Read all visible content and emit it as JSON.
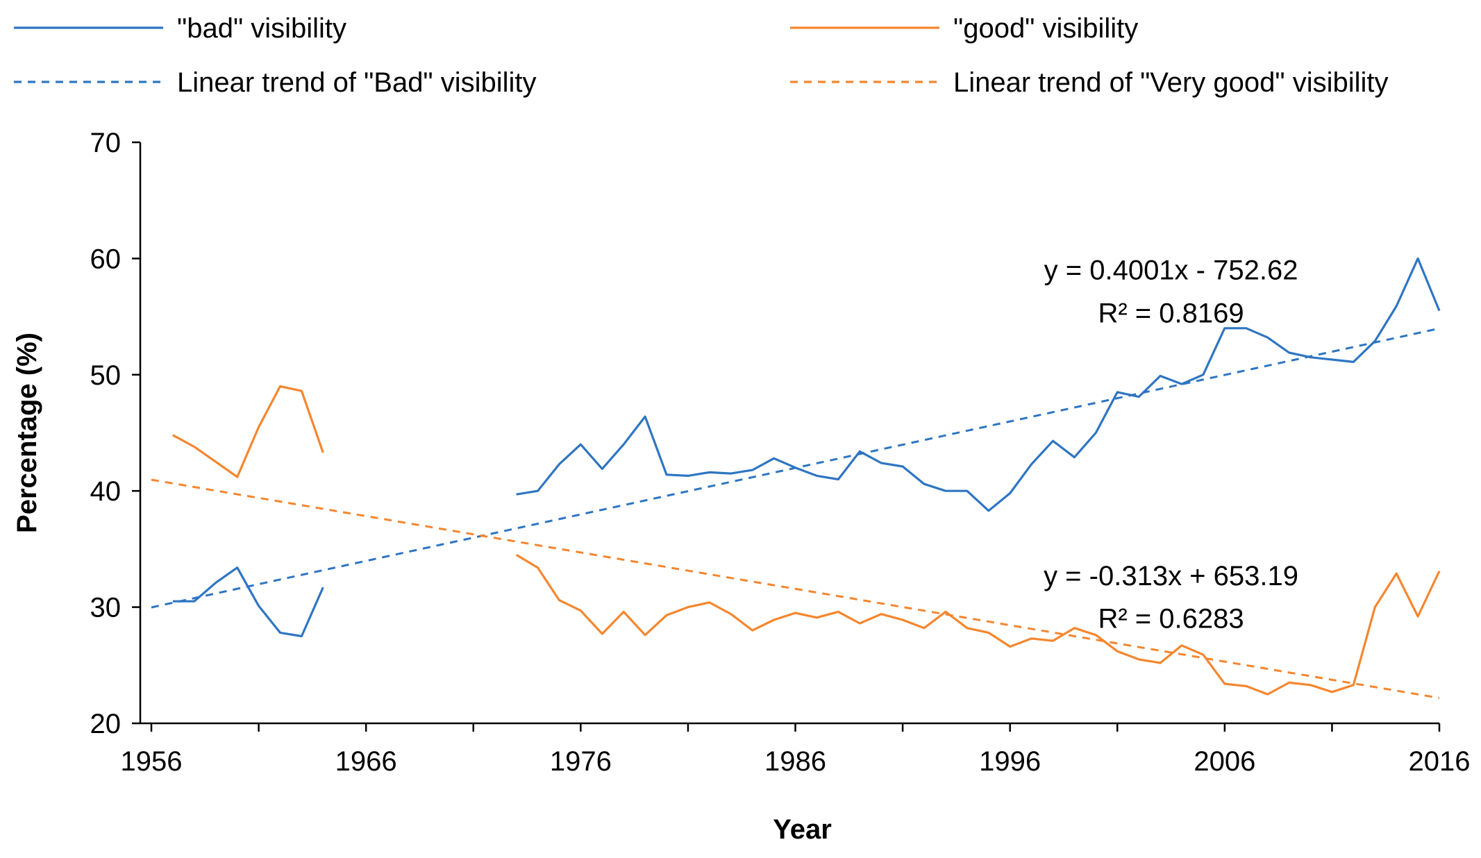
{
  "chart_data": {
    "type": "line",
    "title": "",
    "xlabel": "Year",
    "ylabel": "Percentage (%)",
    "xlim": [
      1956,
      2016
    ],
    "ylim": [
      20,
      70
    ],
    "x_ticks": [
      "1956",
      "1966",
      "1976",
      "1986",
      "1996",
      "2006",
      "2016"
    ],
    "y_ticks": [
      "20",
      "30",
      "40",
      "50",
      "60",
      "70"
    ],
    "grid": false,
    "legend_position": "top",
    "colors": {
      "bad": "#2E75C2",
      "good": "#F5862E"
    },
    "series": [
      {
        "name": "\"bad\" visibility",
        "style": "solid",
        "color_key": "bad",
        "segments": [
          {
            "x": [
              1957,
              1958,
              1959,
              1960,
              1961,
              1962,
              1963,
              1964
            ],
            "y": [
              30.5,
              30.5,
              32.1,
              33.4,
              30.1,
              27.8,
              27.5,
              31.7
            ]
          },
          {
            "x": [
              1973,
              1974,
              1975,
              1976,
              1977,
              1978,
              1979,
              1980,
              1981,
              1982,
              1983,
              1984,
              1985,
              1986,
              1987,
              1988,
              1989,
              1990,
              1991,
              1992,
              1993,
              1994,
              1995,
              1996,
              1997,
              1998,
              1999,
              2000,
              2001,
              2002,
              2003,
              2004,
              2005,
              2006,
              2007,
              2008,
              2009,
              2010,
              2011,
              2012,
              2013,
              2014,
              2015,
              2016
            ],
            "y": [
              39.7,
              40.0,
              42.3,
              44.0,
              41.9,
              44.0,
              46.4,
              41.4,
              41.3,
              41.6,
              41.5,
              41.8,
              42.8,
              42.0,
              41.3,
              41.0,
              43.4,
              42.4,
              42.1,
              40.6,
              40.0,
              40.0,
              38.3,
              39.8,
              42.3,
              44.3,
              42.9,
              45.0,
              48.5,
              48.1,
              49.9,
              49.2,
              50.0,
              54.0,
              54.0,
              53.2,
              51.9,
              51.5,
              51.3,
              51.1,
              52.9,
              55.9,
              60.0,
              55.5
            ]
          }
        ]
      },
      {
        "name": "\"good\" visibility",
        "style": "solid",
        "color_key": "good",
        "segments": [
          {
            "x": [
              1957,
              1958,
              1959,
              1960,
              1961,
              1962,
              1963,
              1964
            ],
            "y": [
              44.8,
              43.8,
              42.5,
              41.2,
              45.5,
              49.0,
              48.6,
              43.3
            ]
          },
          {
            "x": [
              1973,
              1974,
              1975,
              1976,
              1977,
              1978,
              1979,
              1980,
              1981,
              1982,
              1983,
              1984,
              1985,
              1986,
              1987,
              1988,
              1989,
              1990,
              1991,
              1992,
              1993,
              1994,
              1995,
              1996,
              1997,
              1998,
              1999,
              2000,
              2001,
              2002,
              2003,
              2004,
              2005,
              2006,
              2007,
              2008,
              2009,
              2010,
              2011,
              2012,
              2013,
              2014,
              2015,
              2016
            ],
            "y": [
              34.5,
              33.4,
              30.6,
              29.7,
              27.7,
              29.6,
              27.6,
              29.3,
              30.0,
              30.4,
              29.4,
              28.0,
              28.9,
              29.5,
              29.1,
              29.6,
              28.6,
              29.4,
              28.9,
              28.2,
              29.6,
              28.2,
              27.8,
              26.6,
              27.3,
              27.1,
              28.2,
              27.6,
              26.2,
              25.5,
              25.2,
              26.7,
              25.9,
              23.4,
              23.2,
              22.5,
              23.5,
              23.3,
              22.7,
              23.3,
              30.0,
              32.9,
              29.2,
              33.1
            ]
          }
        ]
      },
      {
        "name": "Linear trend of \"Bad\" visibility",
        "style": "dashed",
        "color_key": "bad",
        "slope": 0.4001,
        "intercept": -752.62,
        "x_range": [
          1956,
          2016
        ]
      },
      {
        "name": "Linear trend of \"Very good\" visibility",
        "style": "dashed",
        "color_key": "good",
        "slope": -0.313,
        "intercept": 653.19,
        "x_range": [
          1956,
          2016
        ]
      }
    ],
    "annotations": [
      {
        "text": "y = 0.4001x - 752.62",
        "at_x": 2003.5,
        "at_y": 58.2
      },
      {
        "text": "R² = 0.8169",
        "at_x": 2003.5,
        "at_y": 54.5
      },
      {
        "text": "y = -0.313x + 653.19",
        "at_x": 2003.5,
        "at_y": 31.9
      },
      {
        "text": "R² = 0.6283",
        "at_x": 2003.5,
        "at_y": 28.2
      }
    ]
  }
}
